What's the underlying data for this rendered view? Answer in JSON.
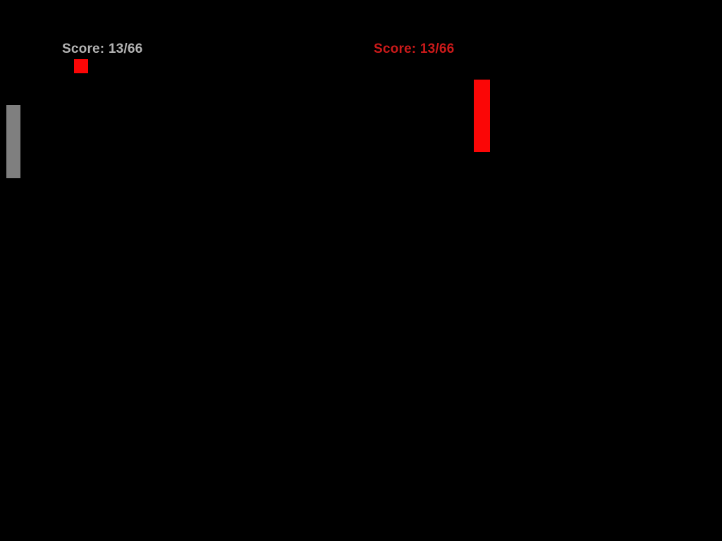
{
  "game": {
    "title": "pong-style-game-screen"
  },
  "players": [
    {
      "side": "left",
      "score_label": "Score: 13/66",
      "text_color": "#b3b3b3",
      "paddle_color": "#7f7f7f"
    },
    {
      "side": "right",
      "score_label": "Score: 13/66",
      "text_color": "#cc1a1a",
      "paddle_color": "#fb0606"
    }
  ],
  "ball": {
    "color": "#fb0606"
  },
  "colors": {
    "bg": "#000000",
    "left-text": "#b3b3b3",
    "right-text": "#cc1a1a",
    "left-paddle": "#7f7f7f",
    "right-paddle": "#fb0606",
    "ball": "#fb0606"
  }
}
